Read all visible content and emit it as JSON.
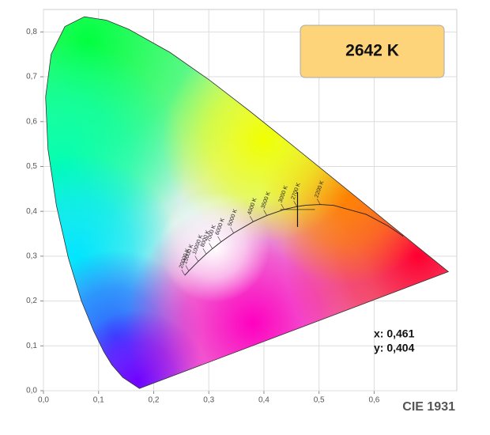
{
  "chart_data": {
    "type": "chromaticity",
    "xlim": [
      0,
      0.75
    ],
    "ylim": [
      0,
      0.85
    ],
    "xticks": [
      {
        "value": 0,
        "label": "0,0"
      },
      {
        "value": 0.1,
        "label": "0,1"
      },
      {
        "value": 0.2,
        "label": "0,2"
      },
      {
        "value": 0.3,
        "label": "0,3"
      },
      {
        "value": 0.4,
        "label": "0,4"
      },
      {
        "value": 0.5,
        "label": "0,5"
      },
      {
        "value": 0.6,
        "label": "0,6"
      }
    ],
    "yticks": [
      {
        "value": 0,
        "label": "0,0"
      },
      {
        "value": 0.1,
        "label": "0,1"
      },
      {
        "value": 0.2,
        "label": "0,2"
      },
      {
        "value": 0.3,
        "label": "0,3"
      },
      {
        "value": 0.4,
        "label": "0,4"
      },
      {
        "value": 0.5,
        "label": "0,5"
      },
      {
        "value": 0.6,
        "label": "0,6"
      },
      {
        "value": 0.7,
        "label": "0,7"
      },
      {
        "value": 0.8,
        "label": "0,8"
      }
    ],
    "grid": true,
    "spectral_locus": {
      "x": [
        0.1741,
        0.144,
        0.1241,
        0.1096,
        0.0913,
        0.0687,
        0.0454,
        0.0235,
        0.0082,
        0.0039,
        0.0139,
        0.0389,
        0.0743,
        0.1142,
        0.1547,
        0.2296,
        0.3016,
        0.3731,
        0.4441,
        0.5125,
        0.5752,
        0.627,
        0.6915,
        0.7347
      ],
      "y": [
        0.005,
        0.0297,
        0.0578,
        0.0868,
        0.1327,
        0.2007,
        0.295,
        0.4127,
        0.5384,
        0.6548,
        0.7502,
        0.812,
        0.8338,
        0.8262,
        0.8059,
        0.7543,
        0.6923,
        0.6245,
        0.5547,
        0.4866,
        0.4242,
        0.3725,
        0.3083,
        0.2653
      ]
    },
    "planckian_locus": {
      "x": [
        0.6528,
        0.6251,
        0.5857,
        0.5267,
        0.5023,
        0.477,
        0.4599,
        0.4369,
        0.4053,
        0.3805,
        0.3451,
        0.3221,
        0.3064,
        0.2952,
        0.2807,
        0.2637,
        0.2565
      ],
      "y": [
        0.3444,
        0.3674,
        0.3931,
        0.4133,
        0.4152,
        0.4137,
        0.4106,
        0.4041,
        0.3907,
        0.3768,
        0.3516,
        0.3318,
        0.3166,
        0.3048,
        0.2883,
        0.267,
        0.2573
      ],
      "labels": [
        null,
        null,
        null,
        null,
        "2200 K",
        null,
        "2700 K",
        "3000 K",
        "3500 K",
        "4000 K",
        "5000 K",
        "6000 K",
        "7000 K",
        "8000 K",
        "10000 K",
        "15000 K",
        "20000 K"
      ]
    },
    "point": {
      "x": 0.461,
      "y": 0.404,
      "cct_label": "2642 K",
      "x_label": "x: 0,461",
      "y_label": "y: 0,404"
    },
    "caption": "CIE 1931"
  }
}
